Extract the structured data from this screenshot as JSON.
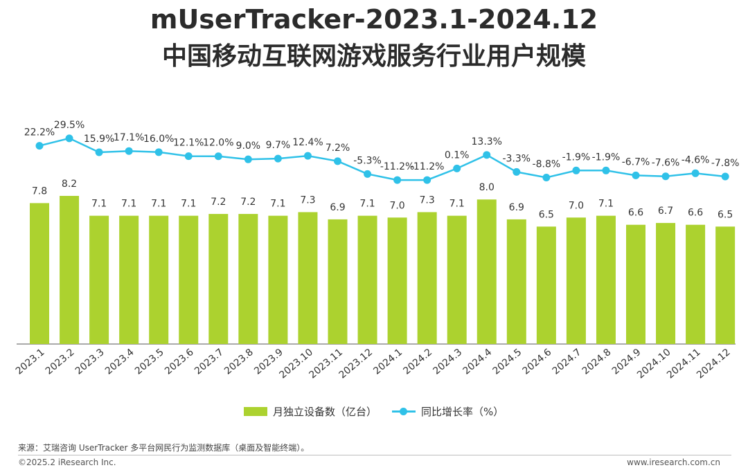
{
  "header": {
    "title_line1": "mUserTracker-2023.1-2024.12",
    "title_line2": "中国移动互联网游戏服务行业用户规模"
  },
  "chart_data": {
    "type": "bar",
    "categories": [
      "2023.1",
      "2023.2",
      "2023.3",
      "2023.4",
      "2023.5",
      "2023.6",
      "2023.7",
      "2023.8",
      "2023.9",
      "2023.10",
      "2023.11",
      "2023.12",
      "2024.1",
      "2024.2",
      "2024.3",
      "2024.4",
      "2024.5",
      "2024.6",
      "2024.7",
      "2024.8",
      "2024.9",
      "2024.10",
      "2024.11",
      "2024.12"
    ],
    "series": [
      {
        "name": "月独立设备数（亿台）",
        "type": "bar",
        "color": "#acd22f",
        "values": [
          7.8,
          8.2,
          7.1,
          7.1,
          7.1,
          7.1,
          7.2,
          7.2,
          7.1,
          7.3,
          6.9,
          7.1,
          7.0,
          7.3,
          7.1,
          8.0,
          6.9,
          6.5,
          7.0,
          7.1,
          6.6,
          6.7,
          6.6,
          6.5
        ],
        "labels": [
          "7.8",
          "8.2",
          "7.1",
          "7.1",
          "7.1",
          "7.1",
          "7.2",
          "7.2",
          "7.1",
          "7.3",
          "6.9",
          "7.1",
          "7.0",
          "7.3",
          "7.1",
          "8.0",
          "6.9",
          "6.5",
          "7.0",
          "7.1",
          "6.6",
          "6.7",
          "6.6",
          "6.5"
        ]
      },
      {
        "name": "同比增长率（%）",
        "type": "line",
        "color": "#2fc1e8",
        "values": [
          22.2,
          29.5,
          15.9,
          17.1,
          16.0,
          12.1,
          12.0,
          9.0,
          9.7,
          12.4,
          7.2,
          -5.3,
          -11.2,
          -11.2,
          0.1,
          13.3,
          -3.3,
          -8.8,
          -1.9,
          -1.9,
          -6.7,
          -7.6,
          -4.6,
          -7.8
        ],
        "labels": [
          "22.2%",
          "29.5%",
          "15.9%",
          "17.1%",
          "16.0%",
          "12.1%",
          "12.0%",
          "9.0%",
          "9.7%",
          "12.4%",
          "7.2%",
          "-5.3%",
          "-11.2%",
          "-11.2%",
          "0.1%",
          "13.3%",
          "-3.3%",
          "-8.8%",
          "-1.9%",
          "-1.9%",
          "-6.7%",
          "-7.6%",
          "-4.6%",
          "-7.8%"
        ]
      }
    ],
    "legend_position": "bottom",
    "grid": false
  },
  "legend": {
    "bar_label": "月独立设备数（亿台）",
    "line_label": "同比增长率（%）"
  },
  "footer": {
    "source": "来源：艾瑞咨询 UserTracker 多平台网民行为监测数据库（桌面及智能终端）。",
    "copyright": "©2025.2 iResearch Inc.",
    "website": "www.iresearch.com.cn"
  }
}
